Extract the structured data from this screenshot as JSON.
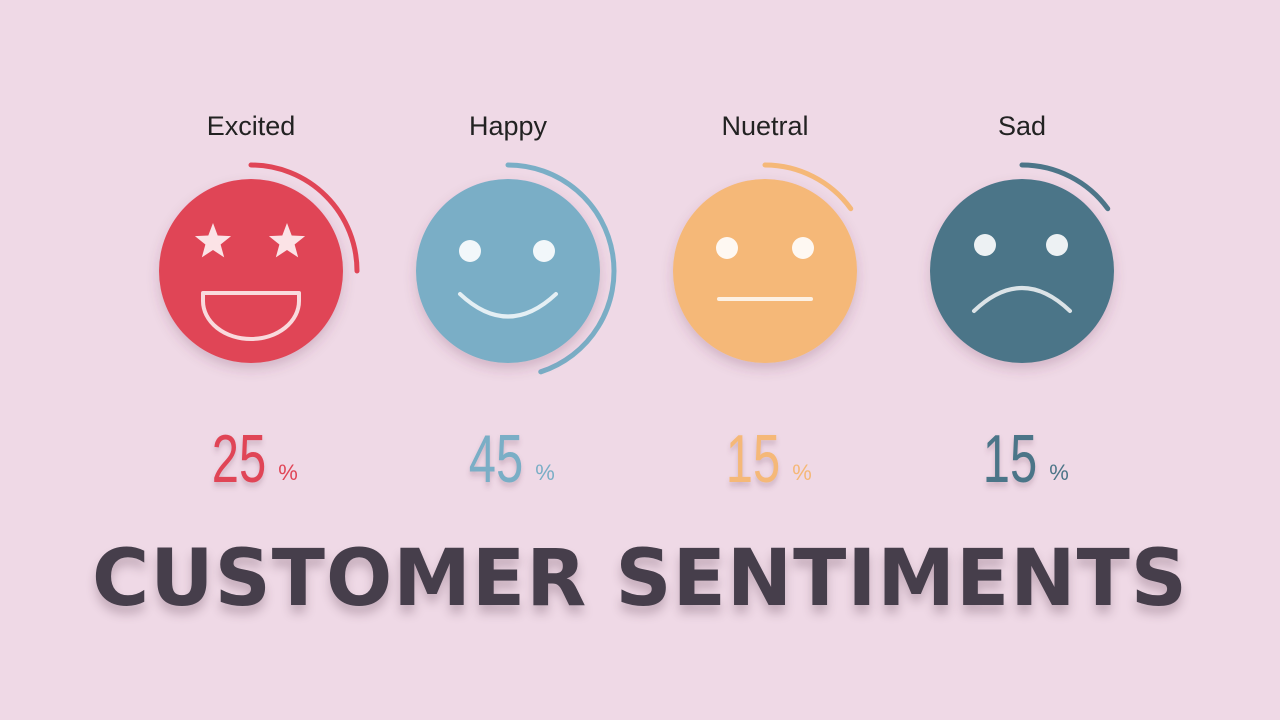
{
  "chart_data": {
    "type": "pie",
    "title": "CUSTOMER SENTIMENTS",
    "categories": [
      "Excited",
      "Happy",
      "Nuetral",
      "Sad"
    ],
    "values": [
      25,
      45,
      15,
      15
    ],
    "unit": "%",
    "colors": [
      "#e04556",
      "#7aaec6",
      "#f5b878",
      "#4c7588"
    ],
    "icons": [
      "star-eyes-grin-face-icon",
      "smiling-face-icon",
      "neutral-face-icon",
      "sad-face-icon"
    ]
  },
  "colors": {
    "background": "#efd9e6",
    "title": "#463e4b",
    "feature": "#ffffff"
  }
}
